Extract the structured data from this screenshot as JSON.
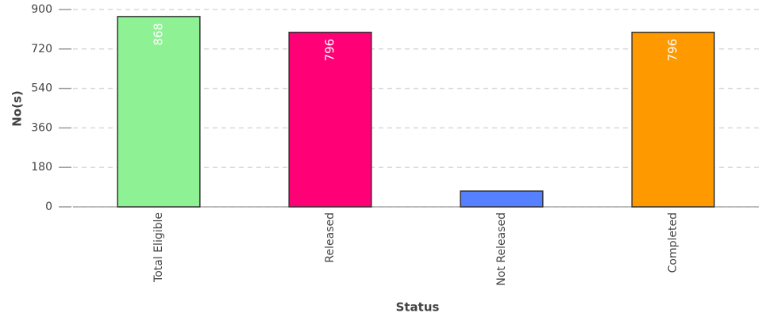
{
  "chart_data": {
    "type": "bar",
    "categories": [
      "Total Eligible",
      "Released",
      "Not Released",
      "Completed"
    ],
    "values": [
      868,
      796,
      72,
      796
    ],
    "value_labels": [
      "868",
      "796",
      null,
      "796"
    ],
    "colors": [
      "#8ef194",
      "#ff0077",
      "#5580ff",
      "#ff9900"
    ],
    "xlabel": "Status",
    "ylabel": "No(s)",
    "ylim": [
      0,
      900
    ],
    "yticks": [
      0,
      180,
      360,
      540,
      720,
      900
    ],
    "grid": true
  }
}
